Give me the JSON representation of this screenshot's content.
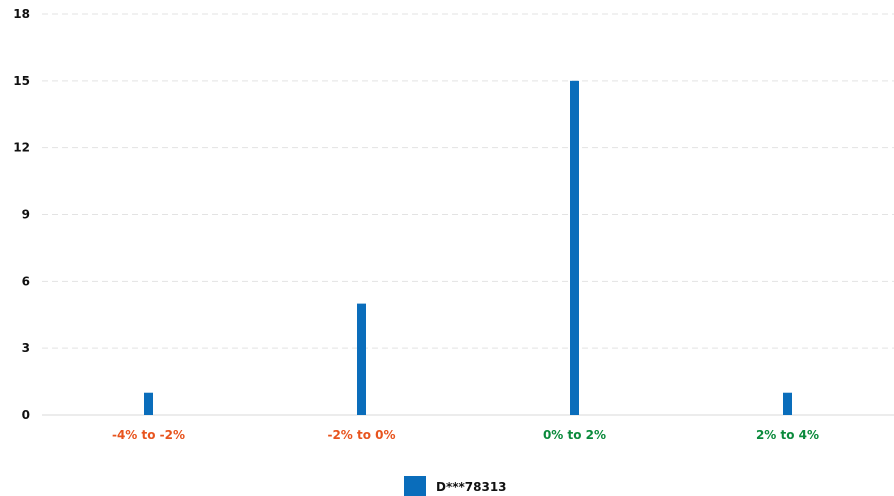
{
  "chart_data": {
    "type": "bar",
    "categories": [
      "-4% to -2%",
      "-2% to 0%",
      "0% to 2%",
      "2% to 4%"
    ],
    "category_colors": [
      "#e8541e",
      "#e8541e",
      "#0b8a3c",
      "#0b8a3c"
    ],
    "series": [
      {
        "name": "D***78313",
        "color": "#0a6dbb",
        "values": [
          1,
          5,
          15,
          1
        ]
      }
    ],
    "ylim": [
      0,
      18
    ],
    "yticks": [
      0,
      3,
      6,
      9,
      12,
      15,
      18
    ],
    "grid": true,
    "legend_position": "bottom-center"
  }
}
